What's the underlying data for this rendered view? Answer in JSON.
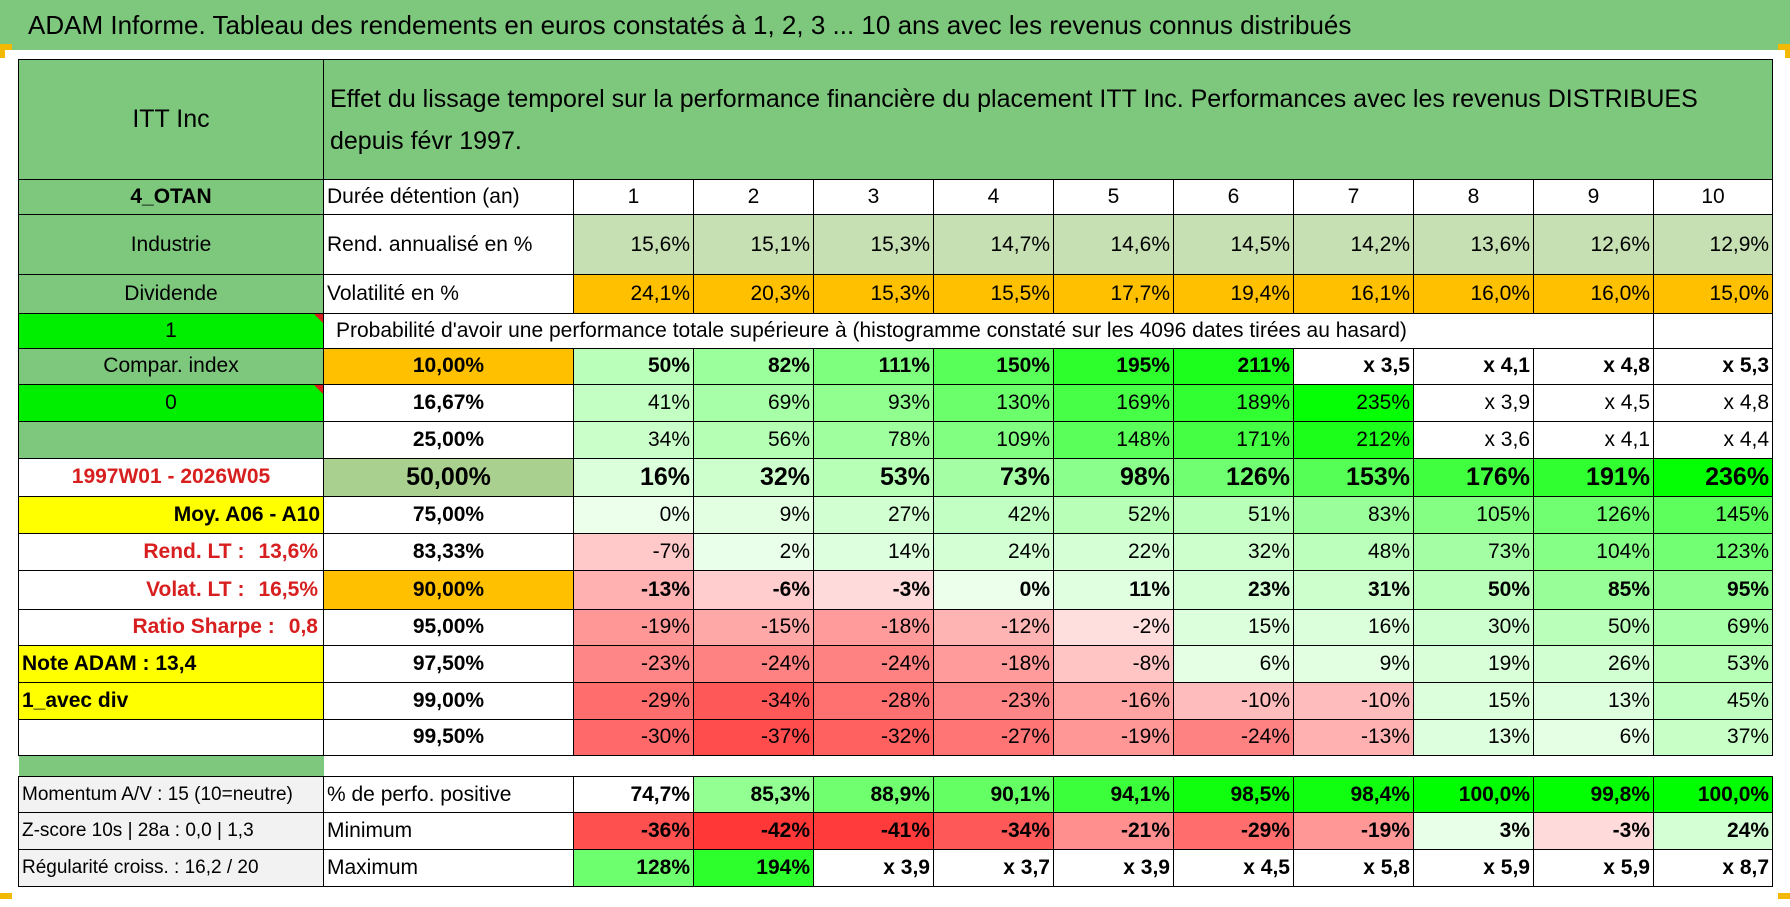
{
  "title": "ADAM Informe. Tableau des rendements en euros constatés à 1, 2, 3 ... 10 ans avec les revenus connus distribués",
  "header": {
    "asset": "ITT Inc",
    "description": "Effet du lissage temporel sur la performance financière du placement ITT Inc. Performances avec les revenus DISTRIBUES depuis févr 1997."
  },
  "left_col": {
    "category": "4_OTAN",
    "sector": "Industrie",
    "income": "Dividende",
    "flag1": "1",
    "compar_index": "Compar. index",
    "flag0": "0",
    "period": "1997W01 - 2026W05",
    "moy": "Moy. A06 - A10",
    "rend_lt_label": "Rend. LT :",
    "rend_lt_value": "13,6%",
    "volat_lt_label": "Volat. LT :",
    "volat_lt_value": "16,5%",
    "sharpe_label": "Ratio Sharpe :",
    "sharpe_value": "0,8",
    "note": "Note ADAM : 13,4",
    "mode": "1_avec div"
  },
  "duration_label": "Durée détention (an)",
  "years": [
    "1",
    "2",
    "3",
    "4",
    "5",
    "6",
    "7",
    "8",
    "9",
    "10"
  ],
  "rend_label": "Rend. annualisé en %",
  "rend": [
    "15,6%",
    "15,1%",
    "15,3%",
    "14,7%",
    "14,6%",
    "14,5%",
    "14,2%",
    "13,6%",
    "12,6%",
    "12,9%"
  ],
  "vol_label": "Volatilité en %",
  "vol": [
    "24,1%",
    "20,3%",
    "15,3%",
    "15,5%",
    "17,7%",
    "19,4%",
    "16,1%",
    "16,0%",
    "16,0%",
    "15,0%"
  ],
  "prob_label": "Probabilité d'avoir une performance totale supérieure à (histogramme constaté sur les 4096 dates tirées au hasard)",
  "prob_rows": [
    {
      "label": "10,00%",
      "values": [
        "50%",
        "82%",
        "111%",
        "150%",
        "195%",
        "211%",
        "x 3,5",
        "x 4,1",
        "x 4,8",
        "x 5,3"
      ]
    },
    {
      "label": "16,67%",
      "values": [
        "41%",
        "69%",
        "93%",
        "130%",
        "169%",
        "189%",
        "235%",
        "x 3,9",
        "x 4,5",
        "x 4,8"
      ]
    },
    {
      "label": "25,00%",
      "values": [
        "34%",
        "56%",
        "78%",
        "109%",
        "148%",
        "171%",
        "212%",
        "x 3,6",
        "x 4,1",
        "x 4,4"
      ]
    },
    {
      "label": "50,00%",
      "values": [
        "16%",
        "32%",
        "53%",
        "73%",
        "98%",
        "126%",
        "153%",
        "176%",
        "191%",
        "236%"
      ]
    },
    {
      "label": "75,00%",
      "values": [
        "0%",
        "9%",
        "27%",
        "42%",
        "52%",
        "51%",
        "83%",
        "105%",
        "126%",
        "145%"
      ]
    },
    {
      "label": "83,33%",
      "values": [
        "-7%",
        "2%",
        "14%",
        "24%",
        "22%",
        "32%",
        "48%",
        "73%",
        "104%",
        "123%"
      ]
    },
    {
      "label": "90,00%",
      "values": [
        "-13%",
        "-6%",
        "-3%",
        "0%",
        "11%",
        "23%",
        "31%",
        "50%",
        "85%",
        "95%"
      ]
    },
    {
      "label": "95,00%",
      "values": [
        "-19%",
        "-15%",
        "-18%",
        "-12%",
        "-2%",
        "15%",
        "16%",
        "30%",
        "50%",
        "69%"
      ]
    },
    {
      "label": "97,50%",
      "values": [
        "-23%",
        "-24%",
        "-24%",
        "-18%",
        "-8%",
        "6%",
        "9%",
        "19%",
        "26%",
        "53%"
      ]
    },
    {
      "label": "99,00%",
      "values": [
        "-29%",
        "-34%",
        "-28%",
        "-23%",
        "-16%",
        "-10%",
        "-10%",
        "15%",
        "13%",
        "45%"
      ]
    },
    {
      "label": "99,50%",
      "values": [
        "-30%",
        "-37%",
        "-32%",
        "-27%",
        "-19%",
        "-24%",
        "-13%",
        "13%",
        "6%",
        "37%"
      ]
    }
  ],
  "bottom": {
    "momentum": "Momentum A/V : 15 (10=neutre)",
    "zscore": "Z-score 10s | 28a : 0,0 | 1,3",
    "regularite": "Régularité croiss. : 16,2 / 20",
    "pos_label": "% de perfo. positive",
    "pos": [
      "74,7%",
      "85,3%",
      "88,9%",
      "90,1%",
      "94,1%",
      "98,5%",
      "98,4%",
      "100,0%",
      "99,8%",
      "100,0%"
    ],
    "min_label": "Minimum",
    "min": [
      "-36%",
      "-42%",
      "-41%",
      "-34%",
      "-21%",
      "-29%",
      "-19%",
      "3%",
      "-3%",
      "24%"
    ],
    "max_label": "Maximum",
    "max": [
      "128%",
      "194%",
      "x 3,9",
      "x 3,7",
      "x 3,9",
      "x 4,5",
      "x 5,8",
      "x 5,9",
      "x 5,9",
      "x 8,7"
    ]
  },
  "colors": {
    "title_bg": "#7ec87e",
    "header_green": "#7ec87e",
    "rend_green": "#c6e0b4",
    "vol_orange": "#ffc000",
    "bright_green": "#00ee00",
    "yellow": "#ffff00",
    "red_text": "#d81f1f"
  }
}
